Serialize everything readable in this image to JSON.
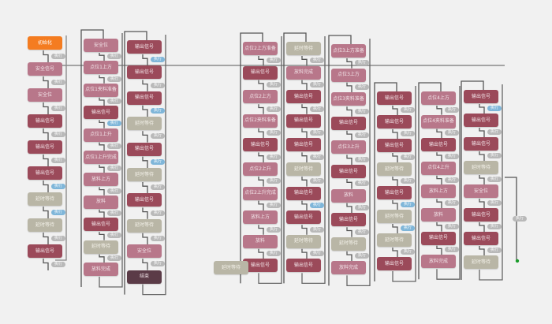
{
  "diagram": {
    "transition_label": "执行",
    "colors": {
      "start": "#f47c20",
      "output": "#9b4a5a",
      "step": "#b8778a",
      "wait": "#b9b6a6",
      "end": "#5b3b47",
      "badge": "#b9b9b9",
      "badge_active": "#7fb6d9",
      "line": "#555555",
      "end_dot": "#1a9c2a"
    },
    "columns": [
      {
        "nodes": [
          {
            "label": "初始化",
            "type": "start"
          },
          {
            "label": "安全信号",
            "type": "step"
          },
          {
            "label": "安全位",
            "type": "step"
          },
          {
            "label": "输出信号",
            "type": "output"
          },
          {
            "label": "输出信号",
            "type": "output"
          },
          {
            "label": "输出信号",
            "type": "output",
            "badge": "blue"
          },
          {
            "label": "延时等待",
            "type": "wait",
            "badge": "blue"
          },
          {
            "label": "延时等待",
            "type": "wait"
          },
          {
            "label": "输出信号",
            "type": "output"
          }
        ]
      },
      {
        "nodes": [
          {
            "label": "安全位",
            "type": "step"
          },
          {
            "label": "点位1上方",
            "type": "step"
          },
          {
            "label": "点位1夹料准备",
            "type": "step"
          },
          {
            "label": "输出信号",
            "type": "output",
            "badge": "blue"
          },
          {
            "label": "点位1上升",
            "type": "step"
          },
          {
            "label": "点位1上升完成",
            "type": "step"
          },
          {
            "label": "放料上方",
            "type": "step"
          },
          {
            "label": "放料",
            "type": "step"
          },
          {
            "label": "输出信号",
            "type": "output"
          },
          {
            "label": "延时等待",
            "type": "wait"
          },
          {
            "label": "放料完成",
            "type": "step"
          }
        ]
      },
      {
        "nodes": [
          {
            "label": "输出信号",
            "type": "output",
            "badge": "blue"
          },
          {
            "label": "输出信号",
            "type": "output"
          },
          {
            "label": "输出信号",
            "type": "output",
            "badge": "blue"
          },
          {
            "label": "延时等待",
            "type": "wait"
          },
          {
            "label": "输出信号",
            "type": "output",
            "badge": "blue"
          },
          {
            "label": "延时等待",
            "type": "wait"
          },
          {
            "label": "输出信号",
            "type": "output"
          },
          {
            "label": "延时等待",
            "type": "wait"
          },
          {
            "label": "安全位",
            "type": "step"
          },
          {
            "label": "结束",
            "type": "end"
          }
        ]
      },
      {
        "nodes": [
          {
            "label": "点位2上方准备",
            "type": "step"
          },
          {
            "label": "输出信号",
            "type": "output"
          },
          {
            "label": "点位2上方",
            "type": "step"
          },
          {
            "label": "点位2夹料准备",
            "type": "step"
          },
          {
            "label": "输出信号",
            "type": "output"
          },
          {
            "label": "点位2上升",
            "type": "step"
          },
          {
            "label": "点位2上升完成",
            "type": "step"
          },
          {
            "label": "放料上方",
            "type": "step"
          },
          {
            "label": "放料",
            "type": "step"
          },
          {
            "label": "输出信号",
            "type": "output"
          }
        ]
      },
      {
        "nodes": [
          {
            "label": "延时等待",
            "type": "wait"
          },
          {
            "label": "放料完成",
            "type": "step"
          },
          {
            "label": "输出信号",
            "type": "output"
          },
          {
            "label": "输出信号",
            "type": "output"
          },
          {
            "label": "输出信号",
            "type": "output"
          },
          {
            "label": "延时等待",
            "type": "wait"
          },
          {
            "label": "输出信号",
            "type": "output",
            "badge": "blue"
          },
          {
            "label": "输出信号",
            "type": "output"
          },
          {
            "label": "延时等待",
            "type": "wait"
          },
          {
            "label": "输出信号",
            "type": "output"
          }
        ]
      },
      {
        "nodes": [
          {
            "label": "点位3上方准备",
            "type": "step"
          },
          {
            "label": "点位3上方",
            "type": "step"
          },
          {
            "label": "点位3夹料准备",
            "type": "step"
          },
          {
            "label": "输出信号",
            "type": "output"
          },
          {
            "label": "点位3上升",
            "type": "step"
          },
          {
            "label": "输出信号",
            "type": "output"
          },
          {
            "label": "放料",
            "type": "step"
          },
          {
            "label": "输出信号",
            "type": "output"
          },
          {
            "label": "延时等待",
            "type": "wait"
          },
          {
            "label": "放料完成",
            "type": "step"
          }
        ]
      },
      {
        "nodes": [
          {
            "label": "输出信号",
            "type": "output"
          },
          {
            "label": "输出信号",
            "type": "output"
          },
          {
            "label": "输出信号",
            "type": "output"
          },
          {
            "label": "延时等待",
            "type": "wait"
          },
          {
            "label": "输出信号",
            "type": "output",
            "badge": "blue"
          },
          {
            "label": "延时等待",
            "type": "wait",
            "badge": "blue"
          },
          {
            "label": "延时等待",
            "type": "wait"
          },
          {
            "label": "输出信号",
            "type": "output"
          }
        ]
      },
      {
        "nodes": [
          {
            "label": "点位4上方",
            "type": "step"
          },
          {
            "label": "点位4夹料准备",
            "type": "step"
          },
          {
            "label": "输出信号",
            "type": "output"
          },
          {
            "label": "点位4上升",
            "type": "step"
          },
          {
            "label": "放料上方",
            "type": "step"
          },
          {
            "label": "放料",
            "type": "step"
          },
          {
            "label": "输出信号",
            "type": "output"
          },
          {
            "label": "放料完成",
            "type": "step"
          }
        ]
      },
      {
        "nodes": [
          {
            "label": "输出信号",
            "type": "output",
            "badge": "blue"
          },
          {
            "label": "输出信号",
            "type": "output"
          },
          {
            "label": "输出信号",
            "type": "output"
          },
          {
            "label": "延时等待",
            "type": "wait"
          },
          {
            "label": "安全位",
            "type": "step"
          },
          {
            "label": "输出信号",
            "type": "output"
          },
          {
            "label": "输出信号",
            "type": "output"
          },
          {
            "label": "延时等待",
            "type": "wait"
          }
        ]
      },
      {
        "nodes": [
          {
            "label": "延时等待",
            "type": "wait"
          }
        ]
      }
    ]
  }
}
